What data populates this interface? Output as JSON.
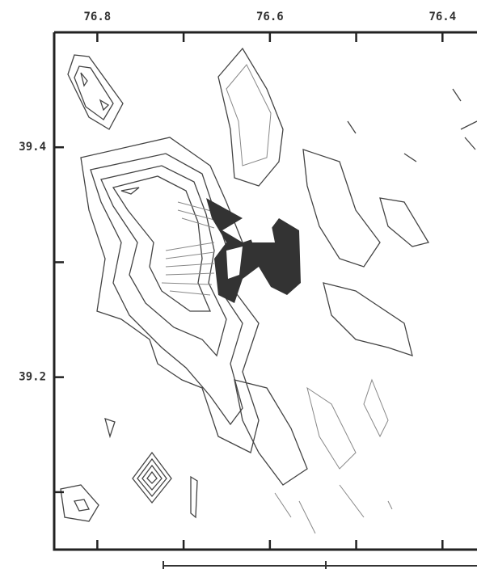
{
  "chart_data": {
    "type": "contour",
    "xlim": [
      76.85,
      76.36
    ],
    "ylim": [
      39.05,
      39.5
    ],
    "xticks": [
      76.8,
      76.6,
      76.4
    ],
    "xminor": [
      76.7,
      76.5
    ],
    "yticks": [
      39.4,
      39.2
    ],
    "yminor": [
      39.3,
      39.1
    ]
  }
}
